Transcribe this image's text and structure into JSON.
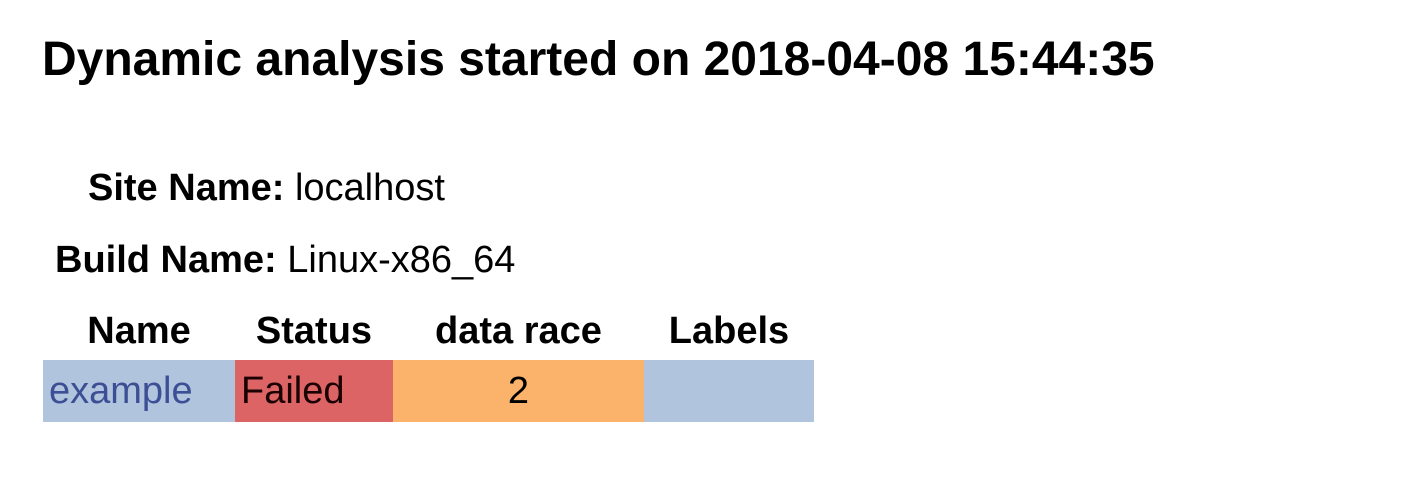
{
  "header": {
    "title": "Dynamic analysis started on 2018-04-08 15:44:35"
  },
  "site": {
    "label": "Site Name:",
    "value": "localhost"
  },
  "build": {
    "label": "Build Name:",
    "value": "Linux-x86_64"
  },
  "table": {
    "columns": [
      "Name",
      "Status",
      "data race",
      "Labels"
    ],
    "rows": [
      {
        "name": "example",
        "status": "Failed",
        "data_race": "2",
        "labels": ""
      }
    ]
  },
  "colors": {
    "name_cell_bg": "#b0c4de",
    "name_link": "#3c4e94",
    "status_failed_bg": "#dc6464",
    "data_race_bg": "#fbb26b",
    "labels_cell_bg": "#b0c4de"
  }
}
